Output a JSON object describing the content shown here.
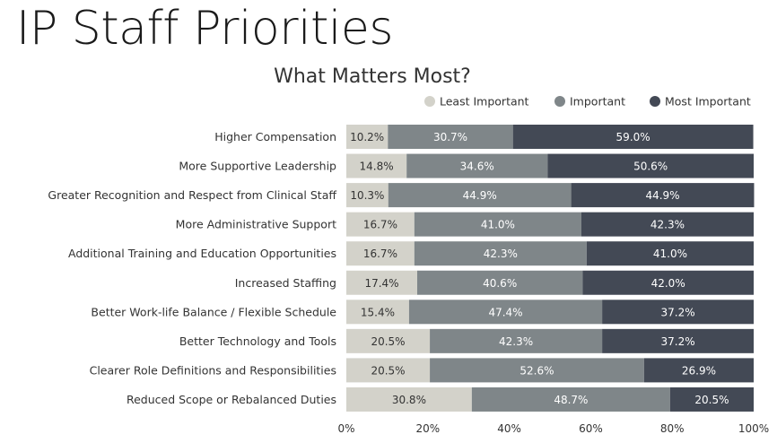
{
  "title": "IP Staff Priorities",
  "chart_data": {
    "type": "bar",
    "orientation": "horizontal",
    "stacked": true,
    "title": "What Matters Most?",
    "xlabel": "",
    "ylabel": "",
    "xlim": [
      0,
      100
    ],
    "x_ticks": [
      "0%",
      "20%",
      "40%",
      "60%",
      "80%",
      "100%"
    ],
    "grid": false,
    "legend_position": "top-right",
    "categories": [
      "Higher Compensation",
      "More Supportive Leadership",
      "Greater Recognition and Respect from Clinical Staff",
      "More Administrative Support",
      "Additional Training and Education Opportunities",
      "Increased Staffing",
      "Better Work-life Balance / Flexible Schedule",
      "Better Technology and Tools",
      "Clearer Role Definitions and Responsibilities",
      "Reduced Scope or Rebalanced Duties"
    ],
    "series": [
      {
        "name": "Least Important",
        "color": "#d3d2ca",
        "text_color": "#333333",
        "values": [
          10.2,
          14.8,
          10.3,
          16.7,
          16.7,
          17.4,
          15.4,
          20.5,
          20.5,
          30.8
        ],
        "labels": [
          "10.2%",
          "14.8%",
          "10.3%",
          "16.7%",
          "16.7%",
          "17.4%",
          "15.4%",
          "20.5%",
          "20.5%",
          "30.8%"
        ]
      },
      {
        "name": "Important",
        "color": "#7f8689",
        "text_color": "#ffffff",
        "values": [
          30.7,
          34.6,
          44.9,
          41.0,
          42.3,
          40.6,
          47.4,
          42.3,
          52.6,
          48.7
        ],
        "labels": [
          "30.7%",
          "34.6%",
          "44.9%",
          "41.0%",
          "42.3%",
          "40.6%",
          "47.4%",
          "42.3%",
          "52.6%",
          "48.7%"
        ]
      },
      {
        "name": "Most Important",
        "color": "#434955",
        "text_color": "#ffffff",
        "values": [
          59.0,
          50.6,
          44.9,
          42.3,
          41.0,
          42.0,
          37.2,
          37.2,
          26.9,
          20.5
        ],
        "labels": [
          "59.0%",
          "50.6%",
          "44.9%",
          "42.3%",
          "41.0%",
          "42.0%",
          "37.2%",
          "37.2%",
          "26.9%",
          "20.5%"
        ]
      }
    ]
  }
}
